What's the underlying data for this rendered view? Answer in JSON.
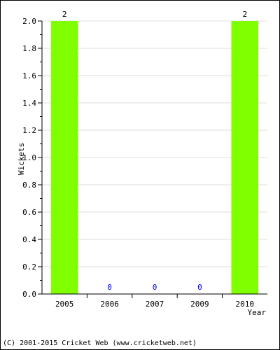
{
  "chart_data": {
    "type": "bar",
    "categories": [
      "2005",
      "2006",
      "2007",
      "2009",
      "2010"
    ],
    "values": [
      2,
      0,
      0,
      0,
      2
    ],
    "data_labels": [
      "2",
      "0",
      "0",
      "0",
      "2"
    ],
    "xlabel": "Year",
    "ylabel": "Wickets",
    "ylim": [
      0,
      2.0
    ],
    "yticks": [
      "0.0",
      "0.2",
      "0.4",
      "0.6",
      "0.8",
      "1.0",
      "1.2",
      "1.4",
      "1.6",
      "1.8",
      "2.0"
    ],
    "grid": true,
    "bar_color": "#80ff00",
    "zero_label_color": "#0000ff"
  },
  "footer": "(C) 2001-2015 Cricket Web (www.cricketweb.net)"
}
